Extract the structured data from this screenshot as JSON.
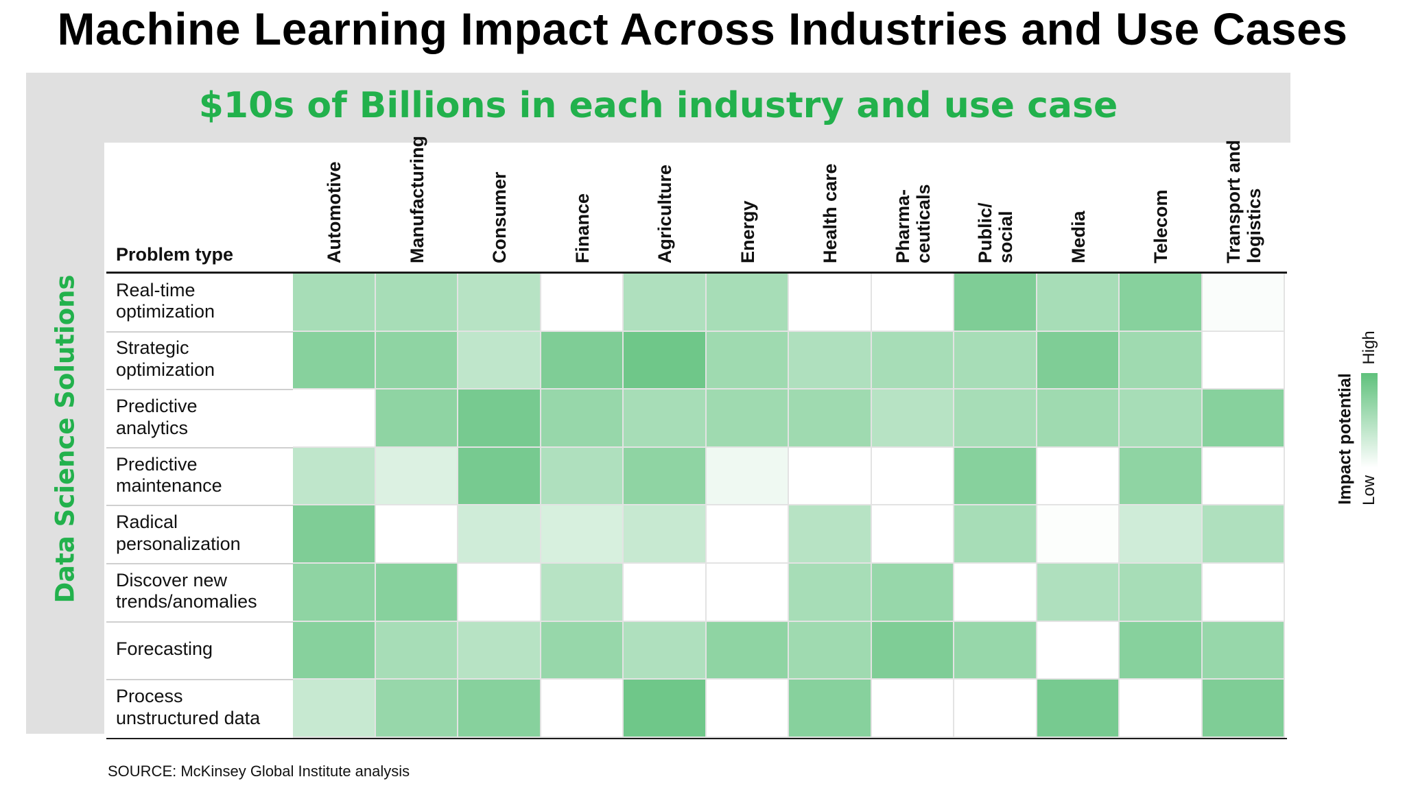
{
  "title": "Machine Learning Impact Across Industries and Use Cases",
  "banner": "$10s of Billions in each industry and use case",
  "side_label": "Data Science Solutions",
  "source": "SOURCE:  McKinsey Global Institute analysis",
  "chart_data": {
    "type": "heatmap",
    "row_header": "Problem type",
    "columns": [
      [
        "Automotive"
      ],
      [
        "Manufacturing"
      ],
      [
        "Consumer"
      ],
      [
        "Finance"
      ],
      [
        "Agriculture"
      ],
      [
        "Energy"
      ],
      [
        "Health care"
      ],
      [
        "Pharma-",
        "ceuticals"
      ],
      [
        "Public/",
        "social"
      ],
      [
        "Media"
      ],
      [
        "Telecom"
      ],
      [
        "Transport and",
        "logistics"
      ]
    ],
    "rows": [
      [
        "Real-time",
        "optimization"
      ],
      [
        "Strategic",
        "optimization"
      ],
      [
        "Predictive",
        "analytics"
      ],
      [
        "Predictive",
        "maintenance"
      ],
      [
        "Radical",
        "personalization"
      ],
      [
        "Discover new",
        "trends/anomalies"
      ],
      [
        "Forecasting"
      ],
      [
        "Process",
        "unstructured data"
      ]
    ],
    "values": [
      [
        0.55,
        0.55,
        0.45,
        0.0,
        0.5,
        0.55,
        0.0,
        0.0,
        0.8,
        0.55,
        0.75,
        0.03
      ],
      [
        0.75,
        0.7,
        0.4,
        0.8,
        0.9,
        0.6,
        0.5,
        0.55,
        0.55,
        0.8,
        0.6,
        0.0
      ],
      [
        0.0,
        0.7,
        0.85,
        0.65,
        0.55,
        0.6,
        0.6,
        0.45,
        0.55,
        0.6,
        0.55,
        0.75
      ],
      [
        0.4,
        0.22,
        0.85,
        0.5,
        0.7,
        0.1,
        0.0,
        0.0,
        0.75,
        0.0,
        0.7,
        0.0
      ],
      [
        0.8,
        0.0,
        0.3,
        0.25,
        0.35,
        0.0,
        0.45,
        0.0,
        0.55,
        0.02,
        0.3,
        0.5
      ],
      [
        0.7,
        0.75,
        0.0,
        0.45,
        0.0,
        0.0,
        0.55,
        0.65,
        0.0,
        0.5,
        0.55,
        0.0
      ],
      [
        0.75,
        0.55,
        0.45,
        0.65,
        0.5,
        0.7,
        0.6,
        0.8,
        0.65,
        0.0,
        0.75,
        0.65
      ],
      [
        0.35,
        0.65,
        0.75,
        0.0,
        0.9,
        0.0,
        0.75,
        0.0,
        0.0,
        0.85,
        0.0,
        0.8
      ]
    ],
    "legend": {
      "title": "Impact potential",
      "high": "High",
      "low": "Low",
      "high_color": "#5fc17c",
      "low_color": "#ffffff"
    }
  }
}
